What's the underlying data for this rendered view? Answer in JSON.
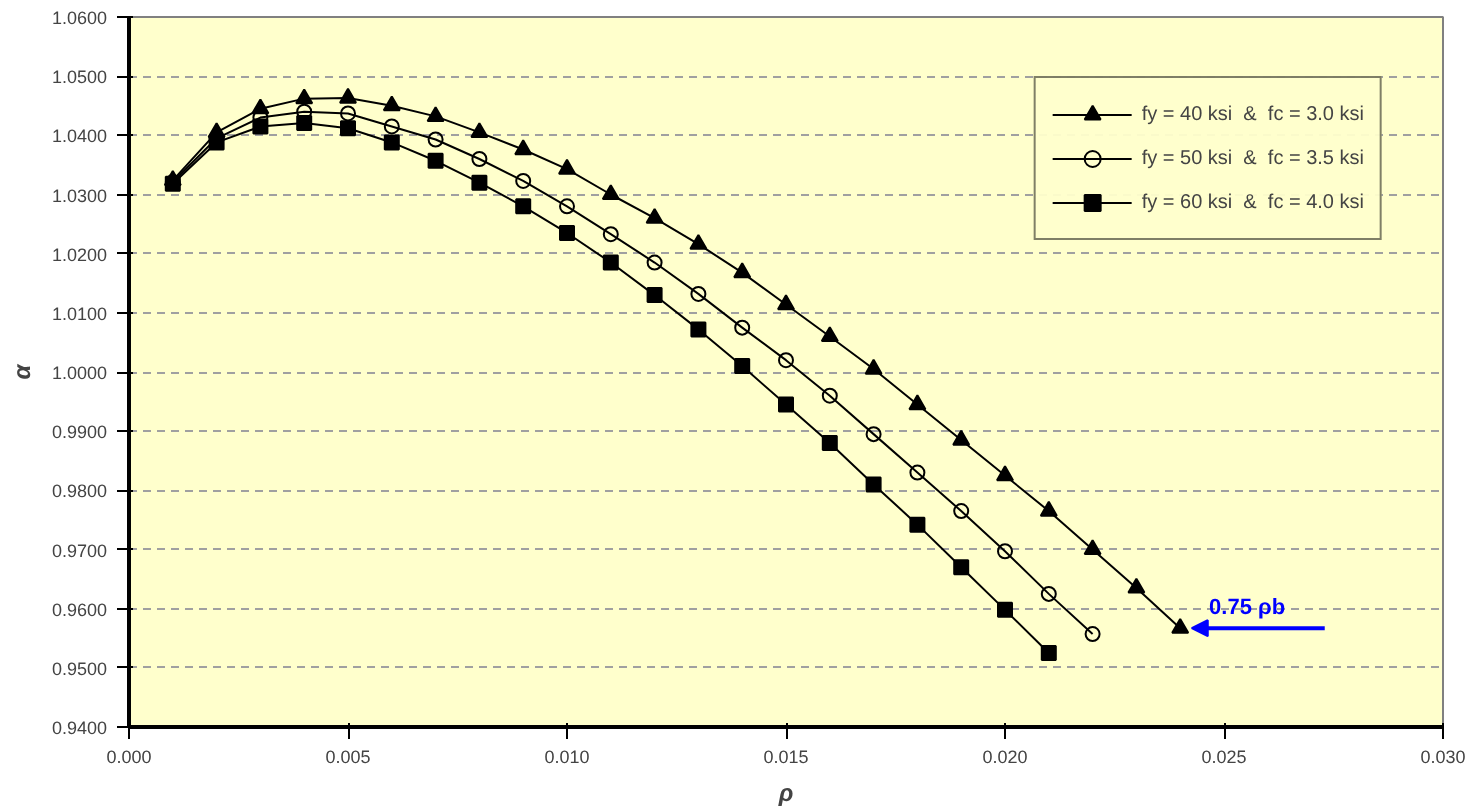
{
  "chart_data": {
    "type": "line",
    "xlabel": "ρ",
    "ylabel": "α",
    "x": [
      0.001,
      0.002,
      0.003,
      0.004,
      0.005,
      0.006,
      0.007,
      0.008,
      0.009,
      0.01,
      0.011,
      0.012,
      0.013,
      0.014,
      0.015,
      0.016,
      0.017,
      0.018,
      0.019,
      0.02,
      0.021,
      0.022,
      0.023,
      0.024
    ],
    "series": [
      {
        "name": "fy = 40 ksi  &  fc = 3.0 ksi",
        "color": "#000000",
        "marker": "triangle",
        "values": [
          1.0324,
          1.0405,
          1.0445,
          1.0462,
          1.0463,
          1.045,
          1.0432,
          1.0405,
          1.0376,
          1.0343,
          1.03,
          1.026,
          1.0216,
          1.0168,
          1.0114,
          1.006,
          1.0005,
          0.9945,
          0.9885,
          0.9825,
          0.9765,
          0.97,
          0.9635,
          0.9567
        ]
      },
      {
        "name": "fy = 50 ksi  &  fc = 3.5 ksi",
        "color": "#000000",
        "marker": "circle",
        "values": [
          1.0321,
          1.0395,
          1.043,
          1.044,
          1.0437,
          1.0415,
          1.0393,
          1.036,
          1.0323,
          1.028,
          1.0233,
          1.0185,
          1.0132,
          1.0075,
          1.002,
          0.996,
          0.9895,
          0.983,
          0.9765,
          0.9697,
          0.9625,
          0.9557,
          null,
          null
        ]
      },
      {
        "name": "fy = 60 ksi  &  fc = 4.0 ksi",
        "color": "#000000",
        "marker": "square",
        "values": [
          1.0318,
          1.0388,
          1.0415,
          1.0421,
          1.0412,
          1.0388,
          1.0357,
          1.032,
          1.028,
          1.0235,
          1.0185,
          1.013,
          1.0072,
          1.001,
          0.9945,
          0.988,
          0.981,
          0.9742,
          0.967,
          0.9598,
          0.9525,
          null,
          null,
          null
        ]
      }
    ],
    "xlim": [
      0,
      0.03
    ],
    "xticks": [
      {
        "value": 0,
        "label": "0.000"
      },
      {
        "value": 0.005,
        "label": "0.005"
      },
      {
        "value": 0.01,
        "label": "0.010"
      },
      {
        "value": 0.015,
        "label": "0.015"
      },
      {
        "value": 0.02,
        "label": "0.020"
      },
      {
        "value": 0.025,
        "label": "0.025"
      },
      {
        "value": 0.03,
        "label": "0.030"
      }
    ],
    "ylim": [
      0.94,
      1.06
    ],
    "yticks": [
      {
        "value": 0.94,
        "label": "0.9400"
      },
      {
        "value": 0.95,
        "label": "0.9500"
      },
      {
        "value": 0.96,
        "label": "0.9600"
      },
      {
        "value": 0.97,
        "label": "0.9700"
      },
      {
        "value": 0.98,
        "label": "0.9800"
      },
      {
        "value": 0.99,
        "label": "0.9900"
      },
      {
        "value": 1.0,
        "label": "1.0000"
      },
      {
        "value": 1.01,
        "label": "1.0100"
      },
      {
        "value": 1.02,
        "label": "1.0200"
      },
      {
        "value": 1.03,
        "label": "1.0300"
      },
      {
        "value": 1.04,
        "label": "1.0400"
      },
      {
        "value": 1.05,
        "label": "1.0500"
      },
      {
        "value": 1.06,
        "label": "1.0600"
      }
    ],
    "annotations": [
      {
        "text": "0.75 ρb",
        "x": 0.024,
        "y": 0.9567
      }
    ],
    "grid": "y",
    "legend": "top right",
    "line_style": "solid"
  }
}
